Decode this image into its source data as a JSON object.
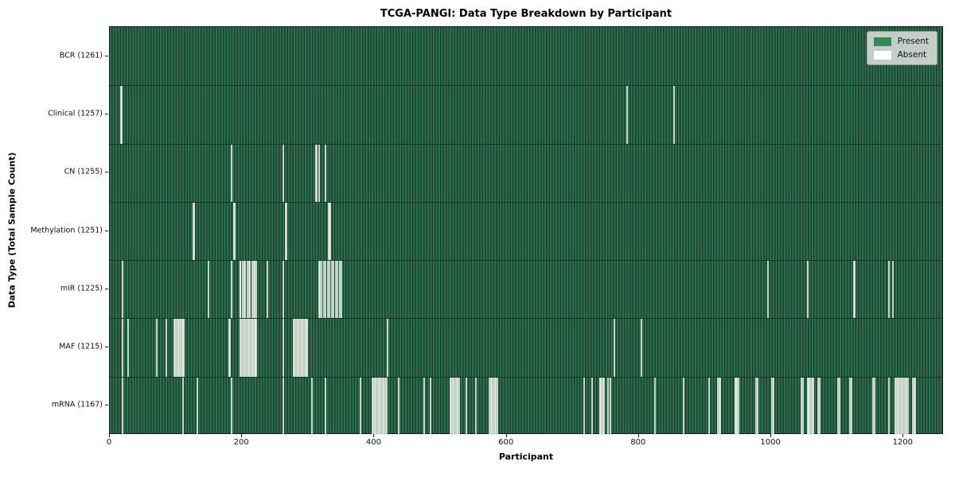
{
  "title": "TCGA-PANGI: Data Type Breakdown by Participant",
  "xlabel": "Participant",
  "ylabel": "Data Type (Total Sample Count)",
  "legend": {
    "present_label": "Present",
    "absent_label": "Absent"
  },
  "colors": {
    "present_green": "#358856",
    "present_band_light": "#2d7050",
    "present_band_dark": "#1c4130",
    "absent_white": "#ffffff",
    "legend_bg": "#dadeda"
  },
  "chart_data": {
    "type": "heatmap",
    "subtype": "presence-absence-matrix",
    "title": "TCGA-PANGI: Data Type Breakdown by Participant",
    "xlabel": "Participant",
    "ylabel": "Data Type (Total Sample Count)",
    "legend_entries": [
      "Present",
      "Absent"
    ],
    "legend_position": "upper right",
    "grid": false,
    "n_participants": 1261,
    "x_range": [
      0,
      1261
    ],
    "x_ticks": [
      0,
      200,
      400,
      600,
      800,
      1000,
      1200
    ],
    "rows": [
      {
        "name": "BCR",
        "label": "BCR (1261)",
        "total": 1261,
        "absent_count": 0,
        "absent_participants_approx": []
      },
      {
        "name": "Clinical",
        "label": "Clinical (1257)",
        "total": 1257,
        "absent_count": 4,
        "absent_participants_approx": [
          16,
          17,
          782,
          854
        ]
      },
      {
        "name": "CN",
        "label": "CN (1255)",
        "total": 1255,
        "absent_count": 6,
        "absent_participants_approx": [
          183,
          262,
          311,
          312,
          316,
          325
        ]
      },
      {
        "name": "Methylation",
        "label": "Methylation (1251)",
        "total": 1251,
        "absent_count": 10,
        "absent_participants_approx": [
          125,
          126,
          187,
          188,
          265,
          266,
          330,
          331,
          332,
          333
        ]
      },
      {
        "name": "miR",
        "label": "miR (1225)",
        "total": 1225,
        "absent_count": 36,
        "absent_participants_approx": [
          18,
          148,
          183,
          196,
          197,
          200,
          203,
          204,
          207,
          210,
          211,
          214,
          217,
          218,
          221,
          238,
          262,
          316,
          317,
          320,
          323,
          326,
          329,
          332,
          335,
          338,
          341,
          344,
          347,
          350,
          996,
          1056,
          1126,
          1127,
          1179,
          1185
        ]
      },
      {
        "name": "MAF",
        "label": "MAF (1215)",
        "total": 1215,
        "absent_count": 46,
        "absent_participants_approx": [
          18,
          26,
          70,
          84,
          96,
          98,
          100,
          102,
          104,
          106,
          108,
          110,
          111,
          180,
          181,
          196,
          198,
          200,
          202,
          204,
          206,
          208,
          210,
          212,
          214,
          216,
          218,
          219,
          220,
          221,
          262,
          277,
          279,
          281,
          283,
          285,
          287,
          289,
          291,
          293,
          295,
          297,
          298,
          419,
          763,
          804
        ]
      },
      {
        "name": "mRNA",
        "label": "mRNA (1167)",
        "total": 1167,
        "absent_count": 94,
        "absent_participants_approx": [
          18,
          110,
          132,
          183,
          262,
          305,
          325,
          379,
          397,
          398,
          400,
          402,
          404,
          406,
          408,
          410,
          412,
          414,
          416,
          418,
          437,
          475,
          485,
          515,
          516,
          518,
          520,
          522,
          524,
          526,
          528,
          539,
          553,
          574,
          576,
          578,
          580,
          582,
          584,
          586,
          717,
          729,
          741,
          742,
          744,
          746,
          748,
          754,
          757,
          824,
          868,
          906,
          920,
          922,
          924,
          946,
          947,
          949,
          951,
          978,
          980,
          1002,
          1004,
          1047,
          1049,
          1056,
          1057,
          1059,
          1061,
          1063,
          1065,
          1072,
          1074,
          1102,
          1104,
          1120,
          1122,
          1155,
          1157,
          1179,
          1189,
          1190,
          1192,
          1194,
          1196,
          1198,
          1200,
          1202,
          1204,
          1206,
          1208,
          1215,
          1217,
          1219
        ]
      }
    ]
  }
}
